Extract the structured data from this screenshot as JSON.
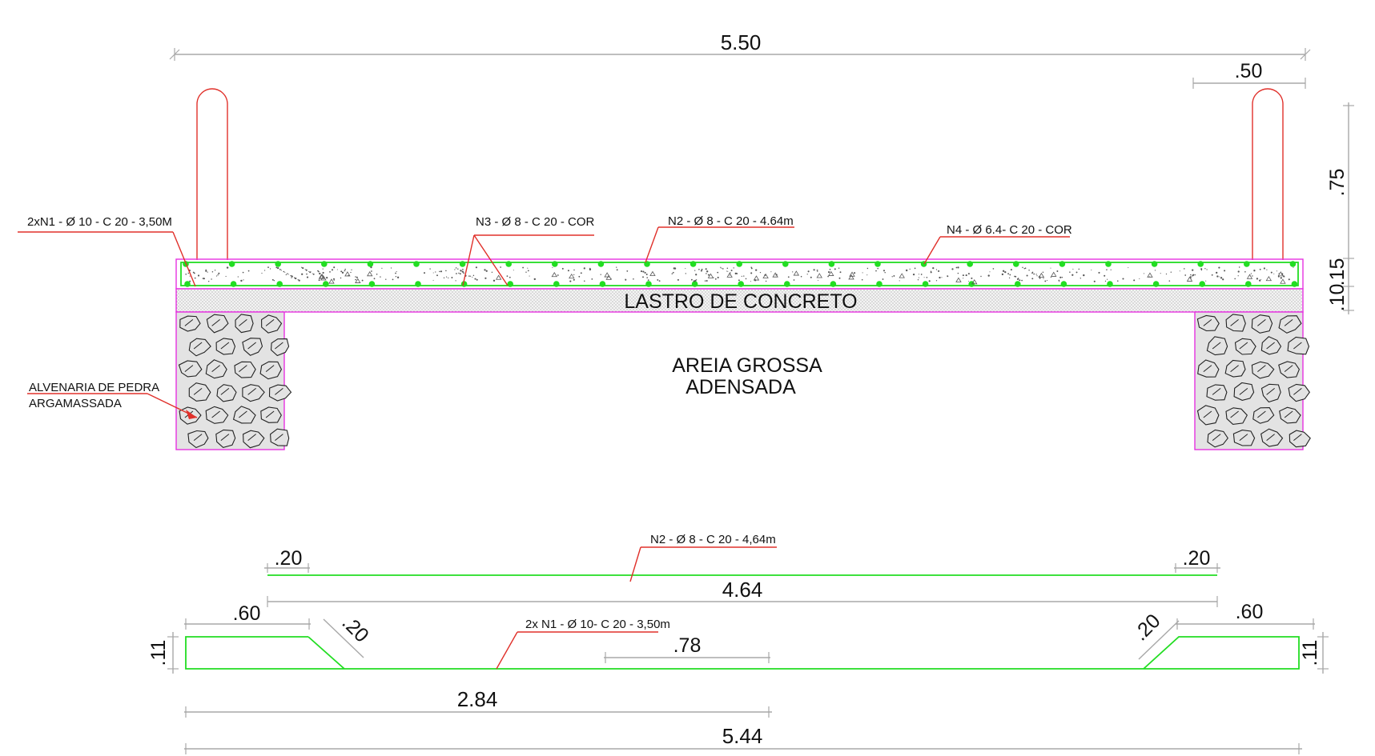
{
  "section": {
    "dim_total_width": "5.50",
    "dim_hook_width": ".50",
    "dim_hook_height": ".75",
    "dim_slab": ".10",
    "dim_lastro": ".15",
    "callout_n1": "2xN1 - Ø 10 - C 20 - 3,50M",
    "callout_n3": "N3 - Ø 8 - C 20 - COR",
    "callout_n2": "N2 - Ø 8 - C 20 - 4.64m",
    "callout_n4": "N4 - Ø 6.4- C 20 - COR",
    "label_lastro": "LASTRO DE CONCRETO",
    "label_areia_1": "AREIA GROSSA",
    "label_areia_2": "ADENSADA",
    "label_alvenaria_1": "ALVENARIA DE PEDRA",
    "label_alvenaria_2": "ARGAMASSADA"
  },
  "bar_n2": {
    "callout": "N2 - Ø 8 - C 20 - 4,64m",
    "dim_left": ".20",
    "dim_right": ".20",
    "dim_length": "4.64"
  },
  "bar_n1": {
    "callout": "2x N1 - Ø 10- C 20 - 3,50m",
    "dim_left_top": ".60",
    "dim_right_top": ".60",
    "dim_left_bend": ".20",
    "dim_right_bend": ".20",
    "dim_left_height": ".11",
    "dim_right_height": ".11",
    "dim_mid": ".78",
    "dim_partial": "2.84",
    "dim_total": "5.44"
  },
  "colors": {
    "rebar": "#22dd22",
    "leader": "#e0302a",
    "outline": "#e632e0",
    "dimension": "#a8a8a8"
  }
}
